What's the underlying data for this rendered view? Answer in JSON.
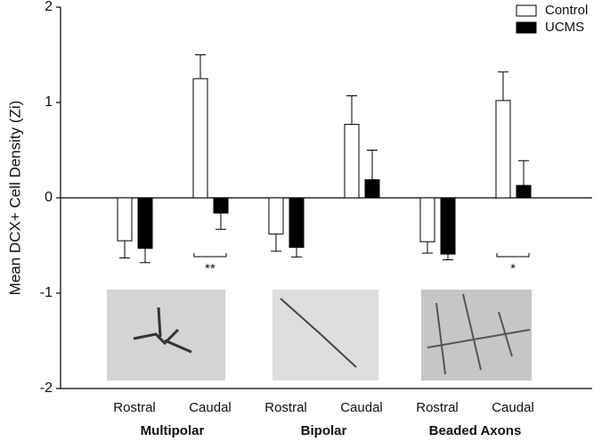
{
  "chart_data": {
    "type": "bar",
    "y_label": "Mean DCX+ Cell Density (Zi)",
    "categories": [
      "Rostral",
      "Caudal",
      "Rostral",
      "Caudal",
      "Rostral",
      "Caudal"
    ],
    "groups": [
      "Multipolar",
      "Bipolar",
      "Beaded Axons"
    ],
    "series": [
      {
        "name": "Control",
        "color": "#ffffff",
        "values": [
          -0.45,
          1.25,
          -0.38,
          0.77,
          -0.46,
          1.02
        ],
        "errors": [
          0.18,
          0.25,
          0.18,
          0.3,
          0.12,
          0.3
        ]
      },
      {
        "name": "UCMS",
        "color": "#000000",
        "values": [
          -0.53,
          -0.16,
          -0.52,
          0.19,
          -0.59,
          0.13
        ],
        "errors": [
          0.15,
          0.17,
          0.1,
          0.31,
          0.06,
          0.26
        ]
      }
    ],
    "annotations": [
      "**",
      "*"
    ],
    "ylim": [
      -2,
      2
    ],
    "yticks": [
      -2,
      -1,
      0,
      1,
      2
    ]
  }
}
